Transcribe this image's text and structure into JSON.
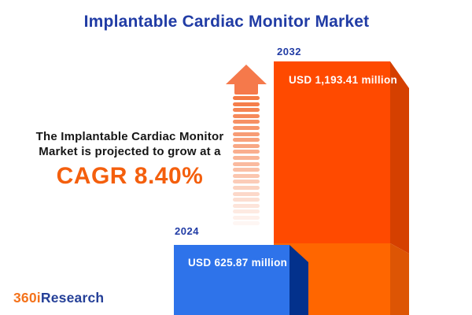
{
  "title": "Implantable Cardiac Monitor Market",
  "promo": {
    "line1": "The Implantable Cardiac Monitor",
    "line2": "Market is projected to grow at a",
    "cagr": "CAGR 8.40%"
  },
  "bars": [
    {
      "year": "2024",
      "value_label": "USD 625.87 million",
      "front_color": "#2E73EA",
      "side_color": "#03318C"
    },
    {
      "year": "2032",
      "value_label": "USD 1,193.41 million",
      "front_color": "#FF4A00",
      "side_color": "#D54000",
      "lower_front_color": "#FF6600",
      "lower_side_color": "#DD5504"
    }
  ],
  "chart_data": {
    "type": "bar",
    "title": "Implantable Cardiac Monitor Market",
    "categories": [
      "2024",
      "2032"
    ],
    "values": [
      625.87,
      1193.41
    ],
    "unit": "USD million",
    "data_labels": [
      "USD 625.87 million",
      "USD 1,193.41 million"
    ],
    "cagr_percent": 8.4,
    "annotation": "The Implantable Cardiac Monitor Market is projected to grow at a CAGR 8.40%",
    "series_colors": [
      "#2E73EA",
      "#FF4A00"
    ],
    "legend": "none",
    "grid": false
  },
  "arrow": {
    "meaning": "growth-up-arrow",
    "color": "#F5794B",
    "stripe_count": 22,
    "stripe_color_rgb": "244,116,60"
  },
  "logo": {
    "prefix": "360i",
    "suffix": "Research",
    "prefix_color": "#F4731C",
    "suffix_color": "#254098"
  },
  "colors": {
    "title_blue": "#213CA5",
    "cagr_orange": "#F45F0D",
    "text_dark": "#161616",
    "background": "#FFFFFF"
  }
}
